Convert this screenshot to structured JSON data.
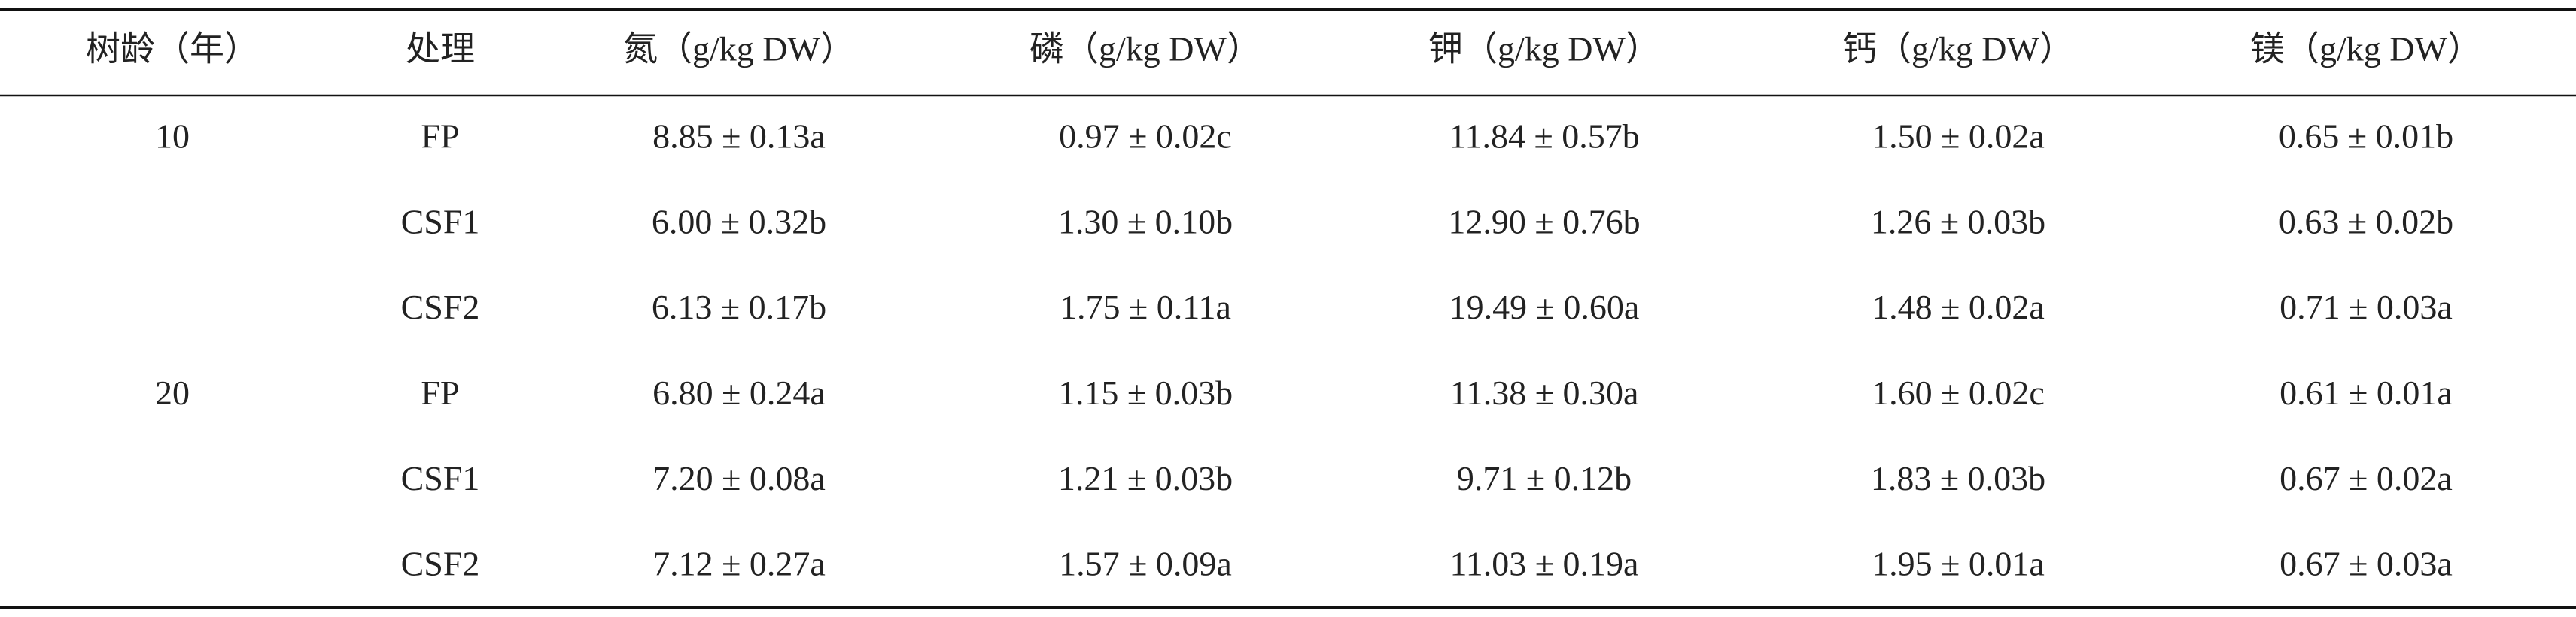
{
  "table": {
    "header": [
      "树龄（年）",
      "处理",
      "氮（g/kg DW）",
      "磷（g/kg DW）",
      "钾（g/kg DW）",
      "钙（g/kg DW）",
      "镁（g/kg DW）"
    ],
    "groups": [
      {
        "age": "10",
        "rows": [
          [
            "FP",
            "8.85 ± 0.13a",
            "0.97 ± 0.02c",
            "11.84 ± 0.57b",
            "1.50 ± 0.02a",
            "0.65 ± 0.01b"
          ],
          [
            "CSF1",
            "6.00 ± 0.32b",
            "1.30 ± 0.10b",
            "12.90 ± 0.76b",
            "1.26 ± 0.03b",
            "0.63 ± 0.02b"
          ],
          [
            "CSF2",
            "6.13 ± 0.17b",
            "1.75 ± 0.11a",
            "19.49 ± 0.60a",
            "1.48 ± 0.02a",
            "0.71 ± 0.03a"
          ]
        ]
      },
      {
        "age": "20",
        "rows": [
          [
            "FP",
            "6.80 ± 0.24a",
            "1.15 ± 0.03b",
            "11.38 ± 0.30a",
            "1.60 ± 0.02c",
            "0.61 ± 0.01a"
          ],
          [
            "CSF1",
            "7.20 ± 0.08a",
            "1.21 ± 0.03b",
            "9.71 ± 0.12b",
            "1.83 ± 0.03b",
            "0.67 ± 0.02a"
          ],
          [
            "CSF2",
            "7.12 ± 0.27a",
            "1.57 ± 0.09a",
            "11.03 ± 0.19a",
            "1.95 ± 0.01a",
            "0.67 ± 0.03a"
          ]
        ]
      }
    ]
  }
}
